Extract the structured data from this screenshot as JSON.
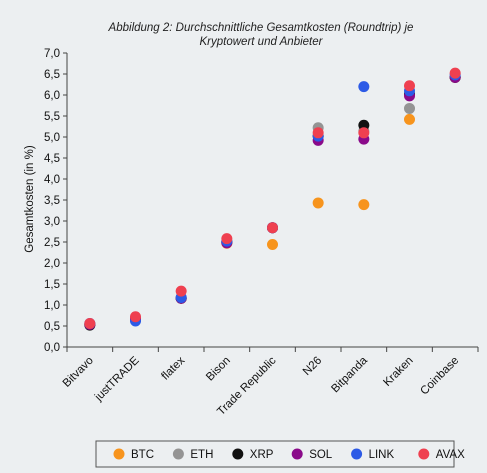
{
  "chart_data": {
    "type": "scatter",
    "title": [
      "Abbildung 2: Durchschnittliche Gesamtkosten (Roundtrip) je",
      "Kryptowert und Anbieter"
    ],
    "ylabel": "Gesamtkosten (in %)",
    "xlabel": "",
    "ylim": [
      0,
      7
    ],
    "yticks": [
      "0,0",
      "0,5",
      "1,0",
      "1,5",
      "2,0",
      "2,5",
      "3,0",
      "3,5",
      "4,0",
      "4,5",
      "5,0",
      "5,5",
      "6,0",
      "6,5",
      "7,0"
    ],
    "grid": false,
    "legend_position": "bottom",
    "categories": [
      "Bitvavo",
      "justTRADE",
      "flatex",
      "Bison",
      "Trade Republic",
      "N26",
      "Bitpanda",
      "Kraken",
      "Coinbase"
    ],
    "series": [
      {
        "name": "BTC",
        "color": "#f7941d",
        "values": [
          0.54,
          0.68,
          1.16,
          2.47,
          2.44,
          3.43,
          3.39,
          5.42,
          6.42
        ]
      },
      {
        "name": "ETH",
        "color": "#949494",
        "values": [
          0.54,
          0.68,
          1.16,
          2.5,
          2.84,
          5.22,
          5.15,
          5.68,
          6.42
        ]
      },
      {
        "name": "XRP",
        "color": "#111111",
        "values": [
          0.52,
          0.64,
          1.16,
          2.5,
          2.84,
          5.02,
          5.28,
          6.02,
          6.42
        ]
      },
      {
        "name": "SOL",
        "color": "#8a0a8a",
        "values": [
          0.54,
          0.68,
          1.16,
          2.48,
          2.84,
          4.92,
          4.95,
          5.98,
          6.42
        ]
      },
      {
        "name": "LINK",
        "color": "#2c5ae6",
        "values": [
          0.56,
          0.62,
          1.18,
          2.52,
          2.84,
          5.02,
          6.2,
          6.1,
          6.48
        ]
      },
      {
        "name": "AVAX",
        "color": "#ef4050",
        "values": [
          0.56,
          0.72,
          1.33,
          2.58,
          2.84,
          5.1,
          5.1,
          6.22,
          6.52
        ]
      }
    ]
  }
}
